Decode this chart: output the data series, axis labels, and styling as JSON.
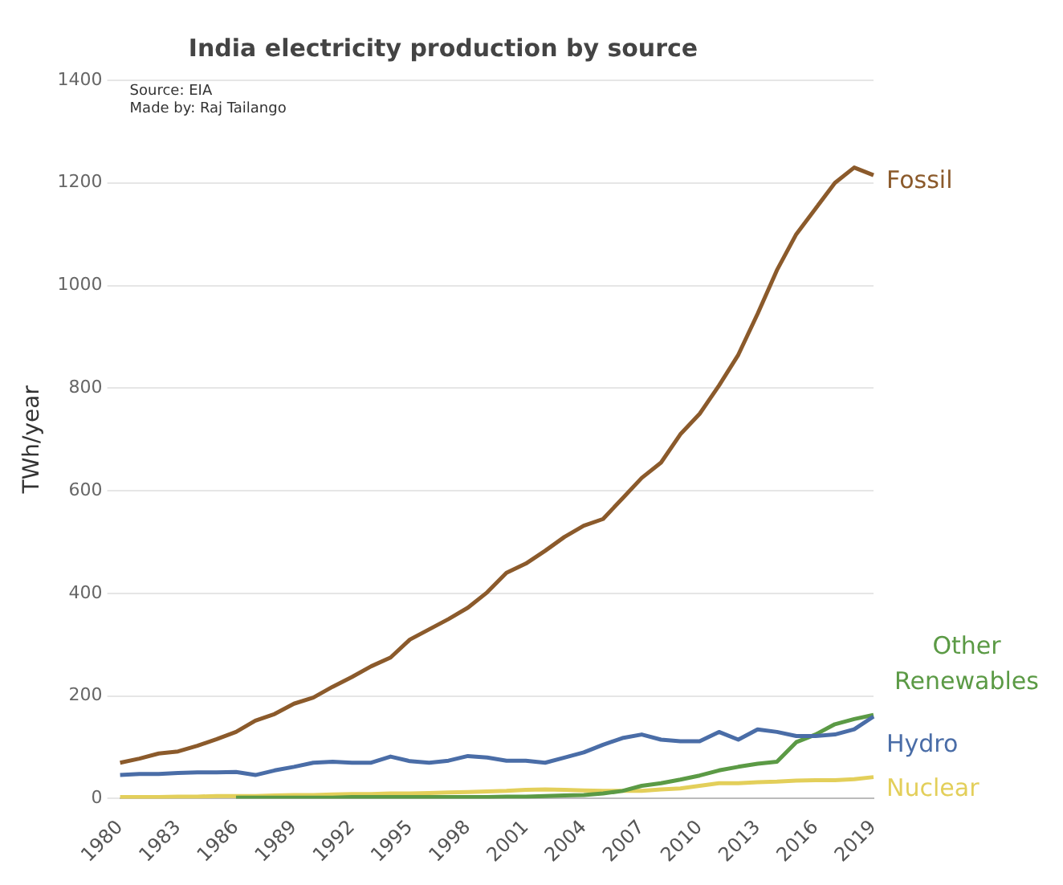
{
  "chart_data": {
    "type": "line",
    "title": "India electricity production by source",
    "ylabel": "TWh/year",
    "annotations": [
      "Source: EIA",
      "Made by: Raj Tailango"
    ],
    "categories": [
      "1980",
      null,
      null,
      "1983",
      null,
      null,
      "1986",
      null,
      null,
      "1989",
      null,
      null,
      "1992",
      null,
      null,
      "1995",
      null,
      null,
      "1998",
      null,
      null,
      "2001",
      null,
      null,
      "2004",
      null,
      null,
      "2007",
      null,
      null,
      "2010",
      null,
      null,
      "2013",
      null,
      null,
      "2016",
      null,
      null,
      "2019"
    ],
    "series": [
      {
        "name": "Fossil",
        "color": "#8b5a2b",
        "values": [
          70,
          78,
          88,
          92,
          103,
          116,
          130,
          152,
          165,
          185,
          197,
          218,
          237,
          258,
          275,
          310,
          330,
          350,
          372,
          402,
          440,
          458,
          483,
          510,
          532,
          545,
          585,
          625,
          655,
          710,
          750,
          805,
          865,
          945,
          1030,
          1100,
          1150,
          1200,
          1230,
          1215
        ]
      },
      {
        "name": "Hydro",
        "color": "#4a6da7",
        "values": [
          46,
          48,
          48,
          50,
          51,
          51,
          52,
          46,
          55,
          62,
          70,
          72,
          70,
          70,
          82,
          73,
          70,
          74,
          83,
          80,
          74,
          74,
          70,
          80,
          90,
          105,
          118,
          125,
          115,
          112,
          112,
          130,
          115,
          135,
          130,
          122,
          122,
          125,
          135,
          160
        ]
      },
      {
        "name": "Other Renewables",
        "color": "#5b9a45",
        "values": [
          null,
          null,
          null,
          null,
          null,
          null,
          2,
          2,
          2,
          2,
          2,
          2,
          3,
          3,
          3,
          3,
          3,
          3,
          3,
          3,
          4,
          4,
          5,
          6,
          7,
          10,
          15,
          25,
          30,
          37,
          45,
          55,
          62,
          68,
          72,
          110,
          125,
          145,
          155,
          163
        ]
      },
      {
        "name": "Nuclear",
        "color": "#e3cf5a",
        "values": [
          3,
          3,
          3,
          4,
          4,
          5,
          5,
          5,
          6,
          7,
          7,
          8,
          9,
          9,
          10,
          10,
          11,
          12,
          13,
          14,
          15,
          17,
          18,
          17,
          16,
          15,
          15,
          15,
          18,
          20,
          25,
          30,
          30,
          32,
          33,
          35,
          36,
          36,
          38,
          42
        ]
      }
    ],
    "ylim": [
      0,
      1400
    ],
    "yticks": [
      0,
      200,
      400,
      600,
      800,
      1000,
      1200,
      1400
    ],
    "grid": "y",
    "legend": false,
    "marker": "none",
    "line_style": "solid"
  }
}
